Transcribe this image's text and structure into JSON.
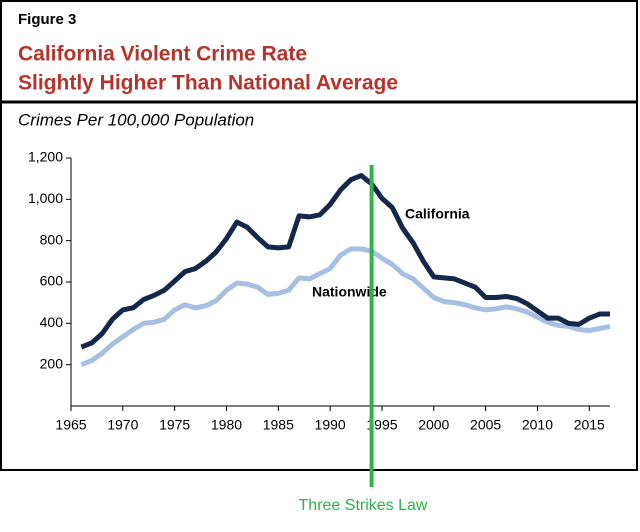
{
  "chart_data": {
    "type": "line",
    "figure_label": "Figure 3",
    "title": [
      "California Violent Crime Rate",
      "Slightly Higher Than National Average"
    ],
    "subtitle": "Crimes Per 100,000 Population",
    "x": [
      1966,
      1967,
      1968,
      1969,
      1970,
      1971,
      1972,
      1973,
      1974,
      1975,
      1976,
      1977,
      1978,
      1979,
      1980,
      1981,
      1982,
      1983,
      1984,
      1985,
      1986,
      1987,
      1988,
      1989,
      1990,
      1991,
      1992,
      1993,
      1994,
      1995,
      1996,
      1997,
      1998,
      1999,
      2000,
      2001,
      2002,
      2003,
      2004,
      2005,
      2006,
      2007,
      2008,
      2009,
      2010,
      2011,
      2012,
      2013,
      2014,
      2015,
      2016,
      2017
    ],
    "series": [
      {
        "name": "California",
        "color": "#14284b",
        "values": [
          285,
          305,
          350,
          420,
          465,
          475,
          515,
          535,
          560,
          605,
          650,
          665,
          700,
          745,
          810,
          890,
          865,
          815,
          770,
          765,
          770,
          920,
          915,
          925,
          975,
          1045,
          1095,
          1115,
          1075,
          1005,
          960,
          860,
          790,
          700,
          625,
          620,
          615,
          595,
          575,
          525,
          525,
          530,
          520,
          495,
          460,
          425,
          425,
          400,
          395,
          425,
          445,
          445
        ]
      },
      {
        "name": "Nationwide",
        "color": "#a6bfe3",
        "values": [
          200,
          220,
          255,
          300,
          335,
          370,
          400,
          405,
          420,
          465,
          490,
          475,
          485,
          510,
          560,
          595,
          590,
          575,
          540,
          545,
          560,
          620,
          615,
          640,
          665,
          730,
          760,
          760,
          750,
          715,
          685,
          640,
          615,
          570,
          525,
          505,
          500,
          490,
          475,
          465,
          470,
          480,
          470,
          455,
          430,
          405,
          390,
          385,
          370,
          365,
          375,
          385
        ]
      }
    ],
    "xlim": [
      1965,
      2017
    ],
    "ylim": [
      0,
      1200
    ],
    "xticks": [
      1965,
      1970,
      1975,
      1980,
      1985,
      1990,
      1995,
      2000,
      2005,
      2010,
      2015
    ],
    "yticks": [
      200,
      400,
      600,
      800,
      {
        "value": 1000,
        "label": "1,000"
      },
      {
        "value": 1200,
        "label": "1,200"
      }
    ],
    "annotation": {
      "text": "Three Strikes Law",
      "x": 1994,
      "color": "#2db34a"
    }
  }
}
